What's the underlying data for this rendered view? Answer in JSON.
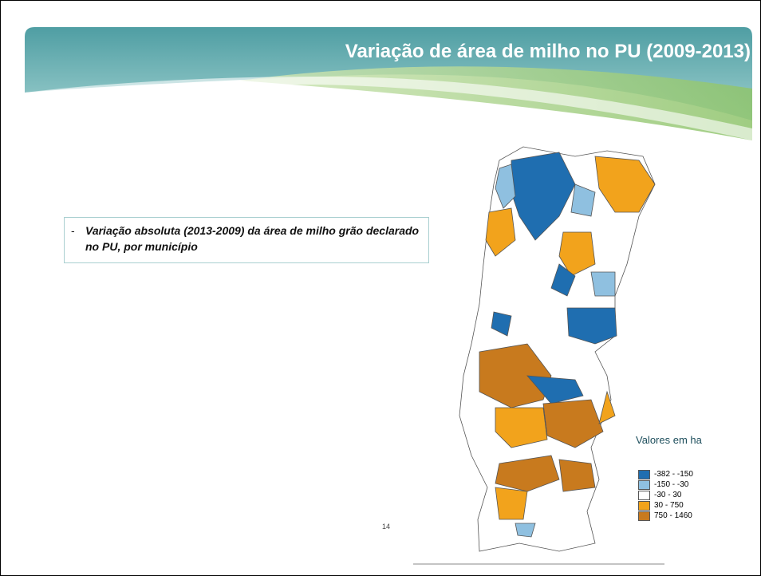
{
  "header": {
    "title": "Variação de área de milho no PU (2009-2013)"
  },
  "bullet": {
    "marker": "-",
    "text": "Variação absoluta (2013-2009) da área de milho grão declarado no PU, por município"
  },
  "legend": {
    "title": "Valores em ha",
    "items": [
      {
        "label": "-382 - -150",
        "color": "#1f6eb0"
      },
      {
        "label": "-150 - -30",
        "color": "#8fc0e0"
      },
      {
        "label": "-30 - 30",
        "color": "#ffffff"
      },
      {
        "label": "30 - 750",
        "color": "#f2a31c"
      },
      {
        "label": "750 - 1460",
        "color": "#c87a1e"
      }
    ]
  },
  "page_number": "14"
}
